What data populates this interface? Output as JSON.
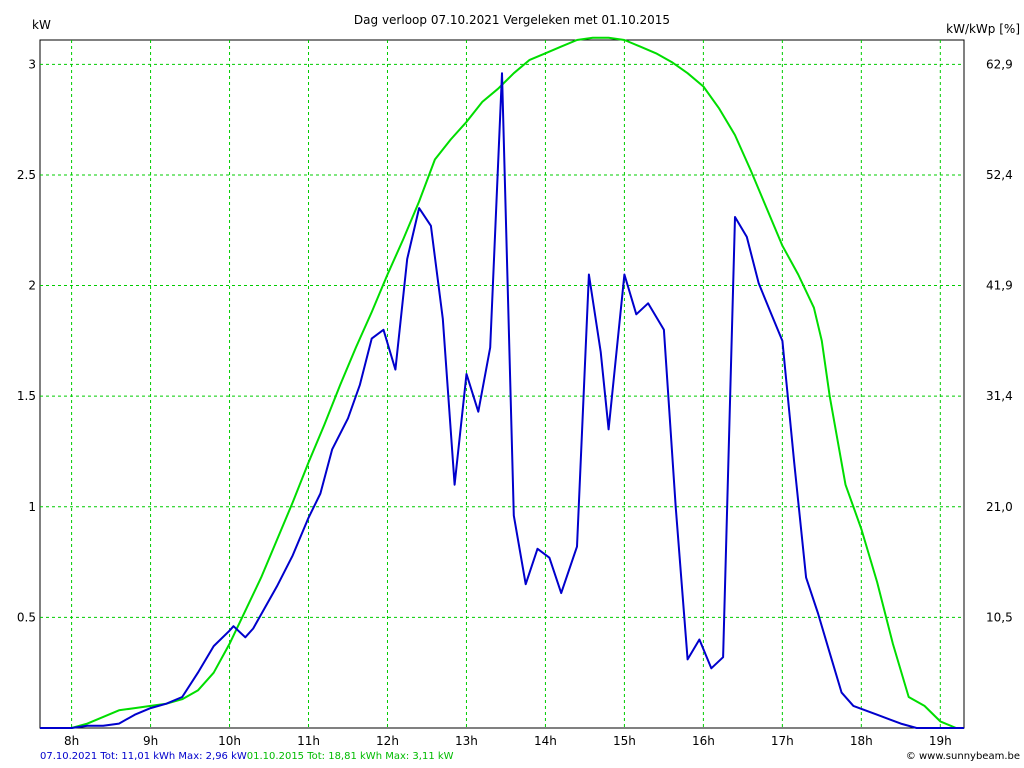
{
  "chart_data": {
    "type": "line",
    "title": "Dag  verloop 07.10.2021   Vergeleken met 01.10.2015",
    "ylabel_left": "kW",
    "ylabel_right": "kW/kWp [%]",
    "xlim": [
      7.6,
      19.3
    ],
    "ylim": [
      0,
      3.11
    ],
    "x_ticks": [
      {
        "v": 8,
        "label": "8h"
      },
      {
        "v": 9,
        "label": "9h"
      },
      {
        "v": 10,
        "label": "10h"
      },
      {
        "v": 11,
        "label": "11h"
      },
      {
        "v": 12,
        "label": "12h"
      },
      {
        "v": 13,
        "label": "13h"
      },
      {
        "v": 14,
        "label": "14h"
      },
      {
        "v": 15,
        "label": "15h"
      },
      {
        "v": 16,
        "label": "16h"
      },
      {
        "v": 17,
        "label": "17h"
      },
      {
        "v": 18,
        "label": "18h"
      },
      {
        "v": 19,
        "label": "19h"
      }
    ],
    "y_ticks_left": [
      {
        "v": 0.5,
        "label": "0.5"
      },
      {
        "v": 1.0,
        "label": "1"
      },
      {
        "v": 1.5,
        "label": "1.5"
      },
      {
        "v": 2.0,
        "label": "2"
      },
      {
        "v": 2.5,
        "label": "2.5"
      },
      {
        "v": 3.0,
        "label": "3"
      }
    ],
    "y_ticks_right": [
      {
        "v": 0.5,
        "label": "10,5"
      },
      {
        "v": 1.0,
        "label": "21,0"
      },
      {
        "v": 1.5,
        "label": "31,4"
      },
      {
        "v": 2.0,
        "label": "41,9"
      },
      {
        "v": 2.5,
        "label": "52,4"
      },
      {
        "v": 3.0,
        "label": "62,9"
      }
    ],
    "grid": true,
    "series": [
      {
        "name": "01.10.2015",
        "color": "#00dd00",
        "points": [
          [
            7.6,
            0
          ],
          [
            8.0,
            0
          ],
          [
            8.2,
            0.02
          ],
          [
            8.4,
            0.05
          ],
          [
            8.6,
            0.08
          ],
          [
            8.8,
            0.09
          ],
          [
            9.0,
            0.1
          ],
          [
            9.2,
            0.11
          ],
          [
            9.4,
            0.13
          ],
          [
            9.6,
            0.17
          ],
          [
            9.8,
            0.25
          ],
          [
            10.0,
            0.38
          ],
          [
            10.2,
            0.53
          ],
          [
            10.4,
            0.68
          ],
          [
            10.6,
            0.85
          ],
          [
            10.8,
            1.02
          ],
          [
            11.0,
            1.2
          ],
          [
            11.2,
            1.37
          ],
          [
            11.4,
            1.55
          ],
          [
            11.6,
            1.72
          ],
          [
            11.8,
            1.88
          ],
          [
            12.0,
            2.05
          ],
          [
            12.2,
            2.21
          ],
          [
            12.4,
            2.38
          ],
          [
            12.6,
            2.57
          ],
          [
            12.8,
            2.66
          ],
          [
            13.0,
            2.74
          ],
          [
            13.2,
            2.83
          ],
          [
            13.4,
            2.89
          ],
          [
            13.6,
            2.96
          ],
          [
            13.8,
            3.02
          ],
          [
            14.0,
            3.05
          ],
          [
            14.2,
            3.08
          ],
          [
            14.4,
            3.11
          ],
          [
            14.6,
            3.12
          ],
          [
            14.8,
            3.12
          ],
          [
            15.0,
            3.11
          ],
          [
            15.2,
            3.08
          ],
          [
            15.4,
            3.05
          ],
          [
            15.6,
            3.01
          ],
          [
            15.8,
            2.96
          ],
          [
            16.0,
            2.9
          ],
          [
            16.2,
            2.8
          ],
          [
            16.4,
            2.68
          ],
          [
            16.6,
            2.52
          ],
          [
            16.8,
            2.35
          ],
          [
            17.0,
            2.18
          ],
          [
            17.2,
            2.05
          ],
          [
            17.4,
            1.9
          ],
          [
            17.5,
            1.75
          ],
          [
            17.6,
            1.5
          ],
          [
            17.8,
            1.1
          ],
          [
            18.0,
            0.9
          ],
          [
            18.2,
            0.66
          ],
          [
            18.4,
            0.38
          ],
          [
            18.6,
            0.14
          ],
          [
            18.8,
            0.1
          ],
          [
            19.0,
            0.03
          ],
          [
            19.2,
            0
          ],
          [
            19.3,
            0
          ]
        ]
      },
      {
        "name": "07.10.2021",
        "color": "#0000cc",
        "points": [
          [
            7.6,
            0
          ],
          [
            8.0,
            0
          ],
          [
            8.2,
            0.01
          ],
          [
            8.4,
            0.01
          ],
          [
            8.6,
            0.02
          ],
          [
            8.8,
            0.06
          ],
          [
            9.0,
            0.09
          ],
          [
            9.2,
            0.11
          ],
          [
            9.4,
            0.14
          ],
          [
            9.6,
            0.25
          ],
          [
            9.8,
            0.37
          ],
          [
            10.0,
            0.44
          ],
          [
            10.05,
            0.46
          ],
          [
            10.2,
            0.41
          ],
          [
            10.3,
            0.45
          ],
          [
            10.6,
            0.64
          ],
          [
            10.8,
            0.78
          ],
          [
            11.0,
            0.95
          ],
          [
            11.15,
            1.06
          ],
          [
            11.3,
            1.26
          ],
          [
            11.5,
            1.4
          ],
          [
            11.65,
            1.55
          ],
          [
            11.8,
            1.76
          ],
          [
            11.95,
            1.8
          ],
          [
            12.1,
            1.62
          ],
          [
            12.25,
            2.12
          ],
          [
            12.4,
            2.35
          ],
          [
            12.55,
            2.27
          ],
          [
            12.7,
            1.85
          ],
          [
            12.85,
            1.1
          ],
          [
            13.0,
            1.6
          ],
          [
            13.15,
            1.43
          ],
          [
            13.3,
            1.72
          ],
          [
            13.45,
            2.96
          ],
          [
            13.6,
            0.96
          ],
          [
            13.75,
            0.65
          ],
          [
            13.9,
            0.81
          ],
          [
            14.05,
            0.77
          ],
          [
            14.2,
            0.61
          ],
          [
            14.4,
            0.82
          ],
          [
            14.55,
            2.05
          ],
          [
            14.7,
            1.7
          ],
          [
            14.8,
            1.35
          ],
          [
            15.0,
            2.05
          ],
          [
            15.15,
            1.87
          ],
          [
            15.3,
            1.92
          ],
          [
            15.5,
            1.8
          ],
          [
            15.65,
            1.0
          ],
          [
            15.8,
            0.31
          ],
          [
            15.95,
            0.4
          ],
          [
            16.1,
            0.27
          ],
          [
            16.25,
            0.32
          ],
          [
            16.4,
            2.31
          ],
          [
            16.55,
            2.22
          ],
          [
            16.7,
            2.01
          ],
          [
            16.85,
            1.88
          ],
          [
            17.0,
            1.75
          ],
          [
            17.15,
            1.2
          ],
          [
            17.3,
            0.68
          ],
          [
            17.45,
            0.52
          ],
          [
            17.6,
            0.34
          ],
          [
            17.75,
            0.16
          ],
          [
            17.9,
            0.1
          ],
          [
            18.2,
            0.06
          ],
          [
            18.5,
            0.02
          ],
          [
            18.7,
            0
          ],
          [
            19.3,
            0
          ]
        ]
      }
    ]
  },
  "footer": {
    "blue_text": "07.10.2021 Tot: 11,01 kWh Max: 2,96 kW",
    "green_text": "01.10.2015 Tot: 18,81 kWh Max: 3,11 kW",
    "credit": "© www.sunnybeam.be"
  }
}
